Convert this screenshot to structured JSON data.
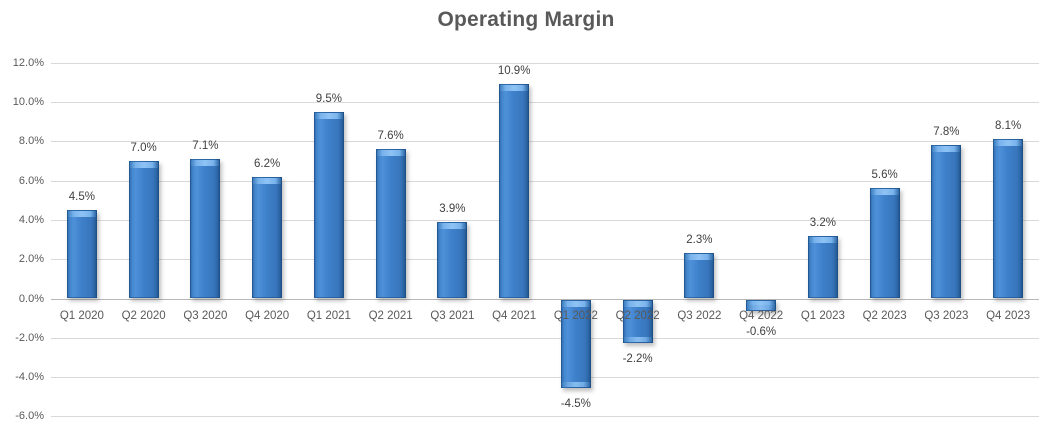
{
  "chart_data": {
    "type": "bar",
    "title": "Operating Margin",
    "xlabel": "",
    "ylabel": "",
    "ylim": [
      -6,
      12
    ],
    "grid": true,
    "legend": false,
    "categories": [
      "Q1 2020",
      "Q2 2020",
      "Q3 2020",
      "Q4 2020",
      "Q1 2021",
      "Q2 2021",
      "Q3 2021",
      "Q4 2021",
      "Q1 2022",
      "Q2 2022",
      "Q3 2022",
      "Q4 2022",
      "Q1 2023",
      "Q2 2023",
      "Q3 2023",
      "Q4 2023"
    ],
    "values": [
      4.5,
      7.0,
      7.1,
      6.2,
      9.5,
      7.6,
      3.9,
      10.9,
      -4.5,
      -2.2,
      2.3,
      -0.6,
      3.2,
      5.6,
      7.8,
      8.1
    ],
    "labels": [
      "4.5%",
      "7.0%",
      "7.1%",
      "6.2%",
      "9.5%",
      "7.6%",
      "3.9%",
      "10.9%",
      "-4.5%",
      "-2.2%",
      "2.3%",
      "-0.6%",
      "3.2%",
      "5.6%",
      "7.8%",
      "8.1%"
    ],
    "yticks": [
      {
        "value": 12,
        "label": "12.0%"
      },
      {
        "value": 10,
        "label": "10.0%"
      },
      {
        "value": 8,
        "label": "8.0%"
      },
      {
        "value": 6,
        "label": "6.0%"
      },
      {
        "value": 4,
        "label": "4.0%"
      },
      {
        "value": 2,
        "label": "2.0%"
      },
      {
        "value": 0,
        "label": "0.0%"
      },
      {
        "value": -2,
        "label": "-2.0%"
      },
      {
        "value": -4,
        "label": "-4.0%"
      },
      {
        "value": -6,
        "label": "-6.0%"
      }
    ]
  },
  "colors": {
    "background": "#ffffff",
    "bar_main": "#3d80c9",
    "bar_light": "#8fc3f4",
    "bar_dark": "#1d4e83",
    "gridline": "#d9d9d9",
    "axis_line": "#b7b7b7",
    "tick_text": "#595959",
    "label_text": "#404040",
    "title_text": "#595959"
  }
}
